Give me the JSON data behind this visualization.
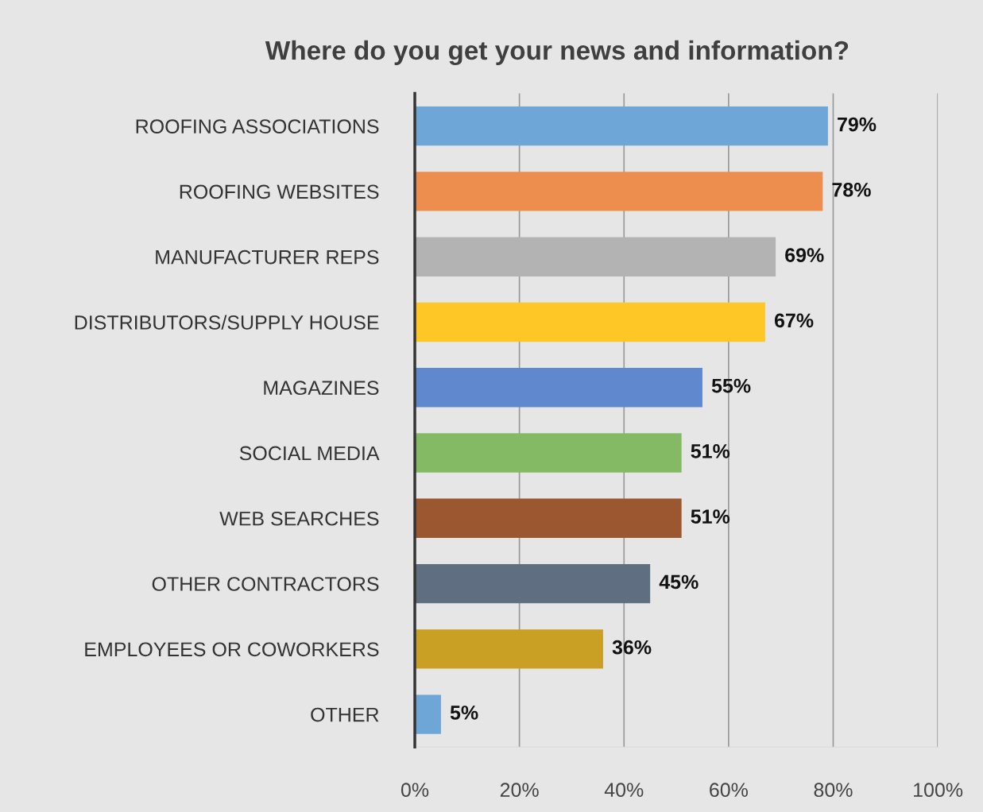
{
  "chart_data": {
    "type": "bar",
    "orientation": "horizontal",
    "title": "Where do you get your news and information?",
    "categories": [
      "ROOFING ASSOCIATIONS",
      "ROOFING WEBSITES",
      "MANUFACTURER REPS",
      "DISTRIBUTORS/SUPPLY HOUSE",
      "MAGAZINES",
      "SOCIAL MEDIA",
      "WEB SEARCHES",
      "OTHER CONTRACTORS",
      "EMPLOYEES OR COWORKERS",
      "OTHER"
    ],
    "values": [
      79,
      78,
      69,
      67,
      55,
      51,
      51,
      45,
      36,
      5
    ],
    "colors": [
      "#6fa6d8",
      "#ed8d4e",
      "#b3b3b3",
      "#ffc726",
      "#5f88cf",
      "#84ba64",
      "#9a5730",
      "#5f6e80",
      "#c9a024",
      "#6fa6d8"
    ],
    "value_labels": [
      "79%",
      "78%",
      "69%",
      "67%",
      "55%",
      "51%",
      "51%",
      "45%",
      "36%",
      "5%"
    ],
    "xlim": [
      0,
      100
    ],
    "xticks": [
      {
        "value": 0,
        "label": "0%"
      },
      {
        "value": 20,
        "label": "20%"
      },
      {
        "value": 40,
        "label": "40%"
      },
      {
        "value": 60,
        "label": "60%"
      },
      {
        "value": 80,
        "label": "80%"
      },
      {
        "value": 100,
        "label": "100%"
      }
    ],
    "grid": "x"
  }
}
